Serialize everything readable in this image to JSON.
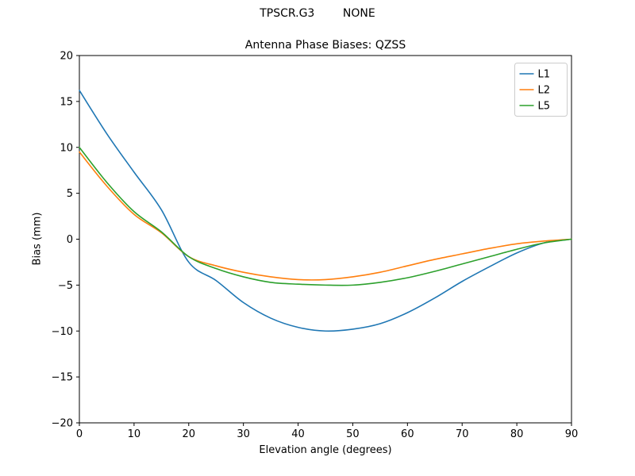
{
  "chart_data": {
    "type": "line",
    "suptitle": "TPSCR.G3        NONE",
    "title": "Antenna Phase Biases: QZSS",
    "xlabel": "Elevation angle (degrees)",
    "ylabel": "Bias (mm)",
    "xlim": [
      0,
      90
    ],
    "ylim": [
      -20,
      20
    ],
    "xticks": [
      0,
      10,
      20,
      30,
      40,
      50,
      60,
      70,
      80,
      90
    ],
    "yticks": [
      -20,
      -15,
      -10,
      -5,
      0,
      5,
      10,
      15,
      20
    ],
    "grid": false,
    "legend_position": "upper right",
    "x": [
      0,
      5,
      10,
      15,
      20,
      25,
      30,
      35,
      40,
      45,
      50,
      55,
      60,
      65,
      70,
      75,
      80,
      85,
      90
    ],
    "series": [
      {
        "name": "L1",
        "color": "#1f77b4",
        "values": [
          16.2,
          11.5,
          7.3,
          3.2,
          -2.5,
          -4.5,
          -6.9,
          -8.6,
          -9.6,
          -10.0,
          -9.8,
          -9.2,
          -8.0,
          -6.4,
          -4.6,
          -3.0,
          -1.5,
          -0.4,
          0.0
        ]
      },
      {
        "name": "L2",
        "color": "#ff7f0e",
        "values": [
          9.5,
          5.8,
          2.7,
          0.7,
          -1.9,
          -2.9,
          -3.6,
          -4.1,
          -4.4,
          -4.4,
          -4.1,
          -3.6,
          -2.9,
          -2.2,
          -1.6,
          -1.0,
          -0.5,
          -0.2,
          0.0
        ]
      },
      {
        "name": "L5",
        "color": "#2ca02c",
        "values": [
          10.0,
          6.2,
          3.0,
          0.8,
          -1.9,
          -3.2,
          -4.1,
          -4.7,
          -4.9,
          -5.0,
          -5.0,
          -4.7,
          -4.2,
          -3.5,
          -2.7,
          -1.9,
          -1.1,
          -0.4,
          0.0
        ]
      }
    ]
  }
}
